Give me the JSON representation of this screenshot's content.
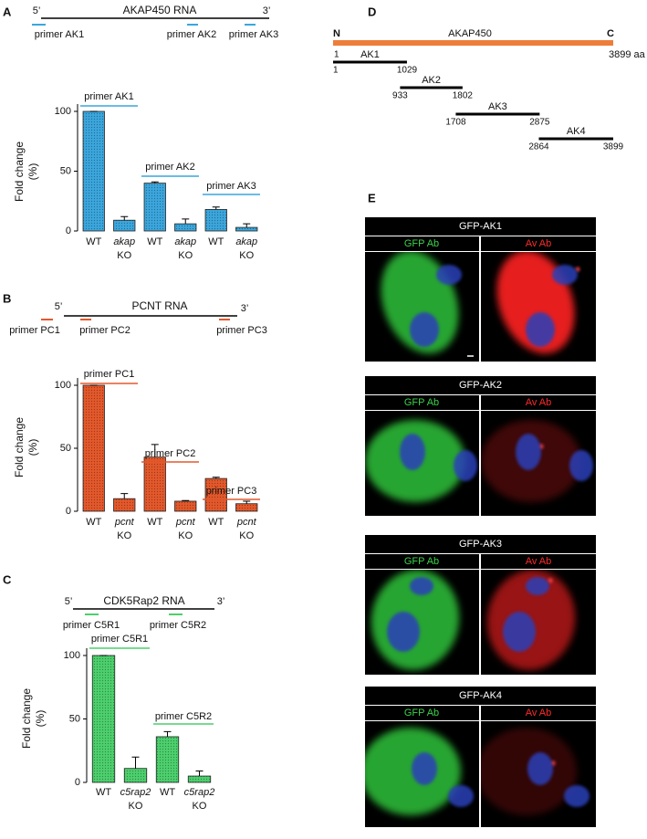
{
  "panel_labels": [
    "A",
    "B",
    "C",
    "D",
    "E"
  ],
  "chart_data": [
    {
      "type": "bar",
      "schematic": {
        "title": "AKAP450 RNA",
        "five_prime": "5’",
        "three_prime": "3’",
        "primers": [
          "primer AK1",
          "primer AK2",
          "primer AK3"
        ]
      },
      "ylabel": [
        "Fold change",
        "(%)"
      ],
      "categories": [
        "WT",
        "akap",
        "WT",
        "akap",
        "WT",
        "akap"
      ],
      "sublabels": [
        null,
        "KO",
        null,
        "KO",
        null,
        "KO"
      ],
      "values": [
        100,
        9,
        40,
        6,
        18,
        3
      ],
      "errors": [
        0,
        3,
        1,
        4,
        2,
        3
      ],
      "annotations": [
        "primer AK1",
        "primer AK2",
        "primer AK3"
      ],
      "color": "#3ba6dc",
      "ylim": [
        0,
        100
      ],
      "yticks": [
        0,
        50,
        100
      ]
    },
    {
      "type": "bar",
      "schematic": {
        "title": "PCNT RNA",
        "five_prime": "5’",
        "three_prime": "3’",
        "primers": [
          "primer PC1",
          "primer PC2",
          "primer PC3"
        ]
      },
      "ylabel": [
        "Fold change",
        "(%)"
      ],
      "categories": [
        "WT",
        "pcnt",
        "WT",
        "pcnt",
        "WT",
        "pcnt"
      ],
      "sublabels": [
        null,
        "KO",
        null,
        "KO",
        null,
        "KO"
      ],
      "values": [
        100,
        10,
        43,
        8,
        26,
        6
      ],
      "errors": [
        0,
        4,
        10,
        0.5,
        1,
        2
      ],
      "annotations": [
        "primer PC1",
        "primer PC2",
        "primer PC3"
      ],
      "color": "#e3582b",
      "ylim": [
        0,
        100
      ],
      "yticks": [
        0,
        50,
        100
      ]
    },
    {
      "type": "bar",
      "schematic": {
        "title": "CDK5Rap2 RNA",
        "five_prime": "5’",
        "three_prime": "3’",
        "primers": [
          "primer C5R1",
          "primer C5R2"
        ]
      },
      "ylabel": [
        "Fold change",
        "(%)"
      ],
      "categories": [
        "WT",
        "c5rap2",
        "WT",
        "c5rap2"
      ],
      "sublabels": [
        null,
        "KO",
        null,
        "KO"
      ],
      "values": [
        100,
        11,
        36,
        5
      ],
      "errors": [
        0,
        9,
        4,
        4
      ],
      "annotations": [
        "primer C5R1",
        "primer C5R2"
      ],
      "color": "#4ccf6c",
      "ylim": [
        0,
        100
      ],
      "yticks": [
        0,
        50,
        100
      ]
    }
  ],
  "domain_map": {
    "n_label": "N",
    "c_label": "C",
    "title": "AKAP450",
    "length_label": "3899 aa",
    "color": "#ee7d3a",
    "xlim": [
      1,
      3899
    ],
    "fragments": [
      {
        "name": "AK1",
        "start": 1,
        "end": 1029
      },
      {
        "name": "AK2",
        "start": 933,
        "end": 1802
      },
      {
        "name": "AK3",
        "start": 1708,
        "end": 2875
      },
      {
        "name": "AK4",
        "start": 2864,
        "end": 3899
      }
    ]
  },
  "panel_e": {
    "rows": [
      {
        "title": "GFP-AK1",
        "left": "GFP Ab",
        "right": "Av Ab"
      },
      {
        "title": "GFP-AK2",
        "left": "GFP Ab",
        "right": "Av Ab"
      },
      {
        "title": "GFP-AK3",
        "left": "GFP Ab",
        "right": "Av Ab"
      },
      {
        "title": "GFP-AK4",
        "left": "GFP Ab",
        "right": "Av Ab"
      }
    ]
  }
}
